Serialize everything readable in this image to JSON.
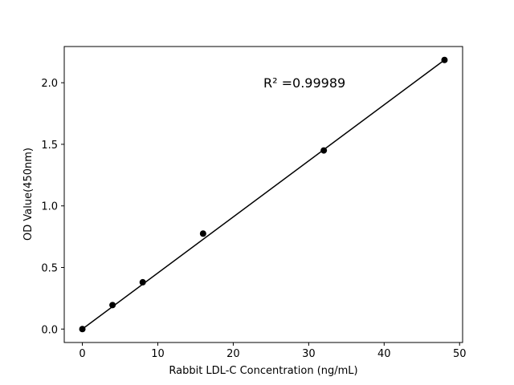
{
  "chart_data": {
    "type": "scatter",
    "x_label": "Rabbit LDL-C Concentration (ng/mL)",
    "y_label": "OD Value(450nm)",
    "x": [
      0,
      4,
      8,
      16,
      32,
      48
    ],
    "values": [
      0.0,
      0.195,
      0.38,
      0.775,
      1.45,
      2.185
    ],
    "color": "#000000",
    "fit_line": {
      "x": [
        0,
        48
      ],
      "values": [
        0.0,
        2.185
      ],
      "color": "#000000"
    },
    "annotation": {
      "text": "R² =0.99989",
      "x": 24,
      "y": 2.0
    },
    "xlim": [
      -2.4,
      50.4
    ],
    "ylim": [
      -0.109,
      2.294
    ],
    "xticks": [
      0,
      10,
      20,
      30,
      40,
      50
    ],
    "yticks": [
      {
        "value": 0,
        "label": "0.0"
      },
      0.5,
      {
        "value": 1,
        "label": "1.0"
      },
      1.5,
      {
        "value": 2,
        "label": "2.0"
      }
    ],
    "grid": false
  }
}
